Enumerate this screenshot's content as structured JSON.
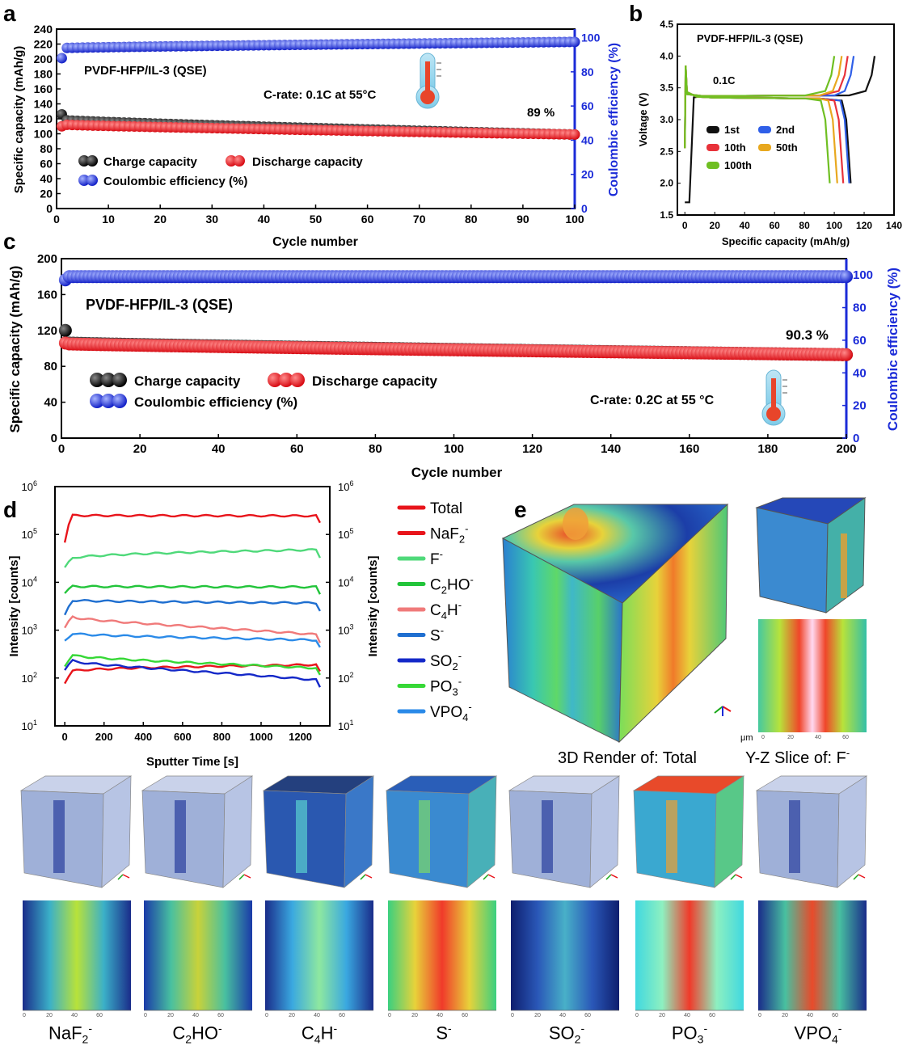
{
  "panel_letters": [
    "a",
    "b",
    "c",
    "d",
    "e"
  ],
  "chart_data": [
    {
      "id": "a",
      "type": "scatter",
      "title": "PVDF-HFP/IL-3 (QSE)",
      "annotation": "C-rate: 0.1C at 55°C",
      "retention_label": "89 %",
      "xlabel": "Cycle number",
      "ylabel": "Specific capacity (mAh/g)",
      "ylabel_right": "Coulombic efficiency (%)",
      "xlim": [
        0,
        100
      ],
      "ylim": [
        0,
        240
      ],
      "ylim_right": [
        0,
        105
      ],
      "xticks": [
        0,
        10,
        20,
        30,
        40,
        50,
        60,
        70,
        80,
        90,
        100
      ],
      "yticks": [
        0,
        20,
        40,
        60,
        80,
        100,
        120,
        140,
        160,
        180,
        200,
        220,
        240
      ],
      "yticks_right": [
        0,
        20,
        40,
        60,
        80,
        100
      ],
      "legend": [
        "Charge capacity",
        "Discharge capacity",
        "Coulombic efficiency (%)"
      ],
      "series": [
        {
          "name": "Charge capacity",
          "color": "#111111",
          "start": 126,
          "second": 118,
          "end": 99
        },
        {
          "name": "Discharge capacity",
          "color": "#e8141b",
          "start": 110,
          "second": 112,
          "end": 99
        },
        {
          "name": "Coulombic efficiency (%)",
          "color": "#1b2bd8",
          "start": 88,
          "second": 94,
          "end": 97.5
        }
      ],
      "n_points": 100
    },
    {
      "id": "b",
      "type": "line",
      "title": "PVDF-HFP/IL-3 (QSE)",
      "annotation": "0.1C",
      "xlabel": "Specific capacity (mAh/g)",
      "ylabel": "Voltage (V)",
      "xlim": [
        -5,
        140
      ],
      "ylim": [
        1.5,
        4.5
      ],
      "xticks": [
        0,
        20,
        40,
        60,
        80,
        100,
        120,
        140
      ],
      "yticks": [
        1.5,
        2.0,
        2.5,
        3.0,
        3.5,
        4.0,
        4.5
      ],
      "legend": [
        "1st",
        "2nd",
        "10th",
        "50th",
        "100th"
      ],
      "series": [
        {
          "name": "1st",
          "color": "#111111",
          "charge_end": 127,
          "discharge_end": 111
        },
        {
          "name": "2nd",
          "color": "#2f5fe8",
          "charge_end": 113,
          "discharge_end": 110
        },
        {
          "name": "10th",
          "color": "#e8323a",
          "charge_end": 109,
          "discharge_end": 106
        },
        {
          "name": "50th",
          "color": "#e8a81f",
          "charge_end": 105,
          "discharge_end": 102
        },
        {
          "name": "100th",
          "color": "#6fbf22",
          "charge_end": 100,
          "discharge_end": 97
        }
      ]
    },
    {
      "id": "c",
      "type": "scatter",
      "title": "PVDF-HFP/IL-3 (QSE)",
      "annotation": "C-rate: 0.2C at 55 °C",
      "retention_label": "90.3 %",
      "xlabel": "Cycle number",
      "ylabel": "Specific capacity (mAh/g)",
      "ylabel_right": "Coulombic efficiency (%)",
      "xlim": [
        0,
        200
      ],
      "ylim": [
        0,
        200
      ],
      "ylim_right": [
        0,
        110
      ],
      "xticks": [
        0,
        20,
        40,
        60,
        80,
        100,
        120,
        140,
        160,
        180,
        200
      ],
      "yticks": [
        0,
        40,
        80,
        120,
        160,
        200
      ],
      "yticks_right": [
        0,
        20,
        40,
        60,
        80,
        100
      ],
      "legend": [
        "Charge capacity",
        "Discharge capacity",
        "Coulombic efficiency (%)"
      ],
      "series": [
        {
          "name": "Charge capacity",
          "color": "#111111",
          "start": 120,
          "second": 106,
          "end": 93
        },
        {
          "name": "Discharge capacity",
          "color": "#e8141b",
          "start": 106,
          "second": 105,
          "end": 93
        },
        {
          "name": "Coulombic efficiency (%)",
          "color": "#1b2bd8",
          "start": 97,
          "second": 99,
          "end": 99
        }
      ],
      "n_points": 200
    },
    {
      "id": "d",
      "type": "line",
      "xlabel": "Sputter Time [s]",
      "ylabel": "Intensity [counts]",
      "ylabel_right": "Intensity [counts]",
      "yscale": "log",
      "xlim": [
        -50,
        1350
      ],
      "ylim_log10": [
        1,
        6
      ],
      "xticks": [
        0,
        200,
        400,
        600,
        800,
        1000,
        1200
      ],
      "ytick_exponents": [
        1,
        2,
        3,
        4,
        5,
        6
      ],
      "legend_labels": [
        "Total",
        "NaF2-",
        "F-",
        "C2HO-",
        "C4H-",
        "S-",
        "SO2-",
        "PO3-",
        "VPO4-"
      ],
      "series": [
        {
          "name": "Total",
          "color": "#e8141b",
          "start": 70000,
          "peak": 250000,
          "end": 245000
        },
        {
          "name": "NaF2-",
          "color": "#e8141b",
          "start": 80,
          "peak": 140,
          "end": 190
        },
        {
          "name": "F-",
          "color": "#4fd97a",
          "start": 20000,
          "peak": 32000,
          "end": 48000
        },
        {
          "name": "C2HO-",
          "color": "#22c43a",
          "start": 6000,
          "peak": 8200,
          "end": 8000
        },
        {
          "name": "C4H-",
          "color": "#f07a7a",
          "start": 1100,
          "peak": 1900,
          "end": 800
        },
        {
          "name": "S-",
          "color": "#1f6fd0",
          "start": 2000,
          "peak": 4200,
          "end": 3700
        },
        {
          "name": "SO2-",
          "color": "#1428c8",
          "start": 150,
          "peak": 230,
          "end": 90
        },
        {
          "name": "PO3-",
          "color": "#36d836",
          "start": 180,
          "peak": 300,
          "end": 160
        },
        {
          "name": "VPO4-",
          "color": "#2a8ae8",
          "start": 600,
          "peak": 850,
          "end": 620
        }
      ]
    }
  ],
  "panel_e": {
    "main_caption": "3D Render of: Total",
    "slice_caption": "Y-Z Slice of: F",
    "slice_caption_sup": "-",
    "scale_unit": "μm",
    "axis_triad": "x y z",
    "slice_ticks": [
      "0",
      "20",
      "40",
      "60"
    ],
    "ion_labels": [
      {
        "base": "NaF",
        "sub": "2",
        "sup": "-"
      },
      {
        "base": "C",
        "sub": "2",
        "rest": "HO",
        "sup": "-"
      },
      {
        "base": "C",
        "sub": "4",
        "rest": "H",
        "sup": "-"
      },
      {
        "base": "S",
        "sub": "",
        "sup": "-"
      },
      {
        "base": "SO",
        "sub": "2",
        "sup": "-"
      },
      {
        "base": "PO",
        "sub": "3",
        "sup": "-"
      },
      {
        "base": "VPO",
        "sub": "4",
        "sup": "-"
      }
    ]
  },
  "colors": {
    "axis_blue": "#1b2bd8",
    "charge": "#111111",
    "discharge": "#e8141b",
    "ce": "#1b2bd8"
  }
}
